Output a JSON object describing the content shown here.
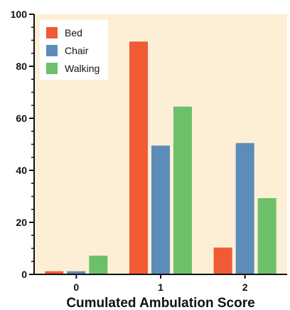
{
  "chart_data": {
    "type": "bar",
    "categories": [
      "0",
      "1",
      "2"
    ],
    "series": [
      {
        "name": "Bed",
        "values": [
          1.2,
          89.5,
          10.3
        ],
        "color": "#f05a35"
      },
      {
        "name": "Chair",
        "values": [
          1.2,
          49.5,
          50.5
        ],
        "color": "#5b8db8"
      },
      {
        "name": "Walking",
        "values": [
          7.2,
          64.5,
          29.3
        ],
        "color": "#6cc06a"
      }
    ],
    "xlabel": "Cumulated Ambulation Score",
    "ylabel": "",
    "ylim": [
      0,
      100
    ],
    "yticks": [
      0,
      20,
      40,
      60,
      80,
      100
    ],
    "legend_position": "top-left",
    "grid": false,
    "plot_background": "#fdefd6"
  }
}
